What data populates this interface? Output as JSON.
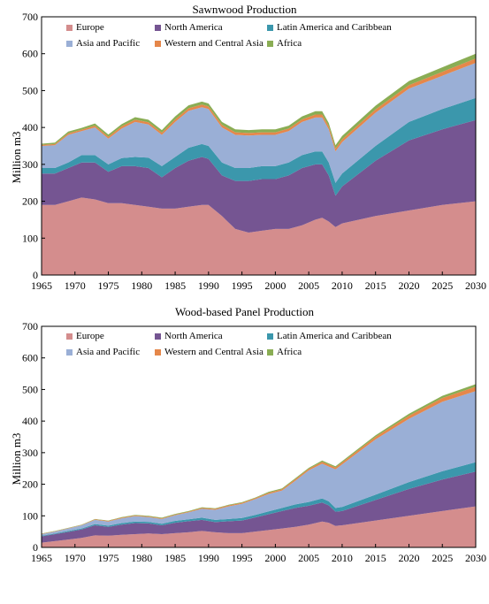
{
  "chart_data": [
    {
      "type": "area",
      "stacked": true,
      "title": "Sawnwood Production",
      "xlabel": "",
      "ylabel": "Million m3",
      "xlim": [
        1965,
        2030
      ],
      "ylim": [
        0,
        700
      ],
      "xticks": [
        1965,
        1970,
        1975,
        1980,
        1985,
        1990,
        1995,
        2000,
        2005,
        2010,
        2015,
        2020,
        2025,
        2030
      ],
      "yticks": [
        0,
        100,
        200,
        300,
        400,
        500,
        600,
        700
      ],
      "grid": false,
      "legend_position": "top-left",
      "x": [
        1965,
        1967,
        1969,
        1971,
        1973,
        1975,
        1977,
        1979,
        1981,
        1983,
        1985,
        1987,
        1989,
        1990,
        1992,
        1994,
        1996,
        1998,
        2000,
        2002,
        2004,
        2006,
        2007,
        2008,
        2009,
        2010,
        2015,
        2020,
        2025,
        2030
      ],
      "series": [
        {
          "name": "Europe",
          "color": "#d48d8d",
          "values": [
            190,
            190,
            200,
            210,
            205,
            195,
            195,
            190,
            185,
            180,
            180,
            185,
            190,
            190,
            160,
            125,
            115,
            120,
            125,
            125,
            135,
            150,
            155,
            145,
            130,
            140,
            160,
            175,
            190,
            200
          ]
        },
        {
          "name": "North America",
          "color": "#755592",
          "values": [
            85,
            85,
            90,
            95,
            100,
            85,
            100,
            105,
            105,
            85,
            110,
            125,
            130,
            125,
            110,
            130,
            140,
            140,
            135,
            145,
            155,
            150,
            145,
            125,
            85,
            100,
            150,
            190,
            205,
            220
          ]
        },
        {
          "name": "Latin America and Caribbean",
          "color": "#3b97ac",
          "values": [
            15,
            15,
            15,
            20,
            20,
            20,
            22,
            25,
            28,
            30,
            30,
            35,
            35,
            35,
            35,
            35,
            35,
            35,
            35,
            35,
            35,
            35,
            35,
            35,
            35,
            35,
            40,
            50,
            55,
            60
          ]
        },
        {
          "name": "Asia and Pacific",
          "color": "#9aafd6",
          "values": [
            60,
            62,
            75,
            65,
            75,
            70,
            80,
            95,
            90,
            85,
            95,
            100,
            100,
            100,
            95,
            90,
            88,
            85,
            85,
            85,
            90,
            92,
            92,
            90,
            85,
            85,
            90,
            90,
            90,
            95
          ]
        },
        {
          "name": "Western and Central Asia",
          "color": "#e5874a",
          "values": [
            3,
            3,
            4,
            4,
            5,
            5,
            6,
            6,
            6,
            6,
            7,
            7,
            7,
            7,
            7,
            7,
            7,
            7,
            7,
            7,
            7,
            8,
            8,
            8,
            8,
            8,
            9,
            10,
            11,
            12
          ]
        },
        {
          "name": "Africa",
          "color": "#8aad54",
          "values": [
            3,
            4,
            5,
            5,
            6,
            6,
            6,
            7,
            7,
            7,
            8,
            8,
            8,
            8,
            8,
            8,
            8,
            8,
            8,
            8,
            8,
            9,
            9,
            9,
            9,
            9,
            10,
            11,
            12,
            13
          ]
        }
      ]
    },
    {
      "type": "area",
      "stacked": true,
      "title": "Wood-based Panel Production",
      "xlabel": "",
      "ylabel": "Million m3",
      "xlim": [
        1965,
        2030
      ],
      "ylim": [
        0,
        700
      ],
      "xticks": [
        1965,
        1970,
        1975,
        1980,
        1985,
        1990,
        1995,
        2000,
        2005,
        2010,
        2015,
        2020,
        2025,
        2030
      ],
      "yticks": [
        0,
        100,
        200,
        300,
        400,
        500,
        600,
        700
      ],
      "grid": false,
      "legend_position": "top-left",
      "x": [
        1965,
        1967,
        1969,
        1971,
        1973,
        1975,
        1977,
        1979,
        1981,
        1983,
        1985,
        1987,
        1989,
        1991,
        1993,
        1995,
        1997,
        1999,
        2001,
        2003,
        2005,
        2007,
        2008,
        2009,
        2010,
        2015,
        2020,
        2025,
        2030
      ],
      "series": [
        {
          "name": "Europe",
          "color": "#d48d8d",
          "values": [
            15,
            20,
            25,
            30,
            38,
            37,
            40,
            42,
            44,
            42,
            45,
            48,
            52,
            48,
            45,
            45,
            50,
            55,
            60,
            65,
            72,
            82,
            78,
            68,
            70,
            85,
            100,
            115,
            130
          ]
        },
        {
          "name": "North America",
          "color": "#755592",
          "values": [
            20,
            22,
            24,
            27,
            32,
            28,
            32,
            35,
            32,
            28,
            33,
            35,
            35,
            32,
            38,
            40,
            45,
            50,
            55,
            60,
            60,
            60,
            55,
            45,
            45,
            65,
            85,
            100,
            110
          ]
        },
        {
          "name": "Latin America and Caribbean",
          "color": "#3b97ac",
          "values": [
            2,
            2,
            3,
            3,
            4,
            4,
            5,
            5,
            5,
            5,
            6,
            6,
            7,
            7,
            7,
            8,
            8,
            9,
            10,
            11,
            12,
            13,
            13,
            12,
            13,
            17,
            22,
            26,
            30
          ]
        },
        {
          "name": "Asia and Pacific",
          "color": "#9aafd6",
          "values": [
            5,
            6,
            8,
            10,
            13,
            13,
            15,
            17,
            15,
            15,
            18,
            22,
            28,
            32,
            40,
            45,
            50,
            55,
            55,
            75,
            100,
            110,
            110,
            122,
            135,
            175,
            200,
            220,
            225
          ]
        },
        {
          "name": "Western and Central Asia",
          "color": "#e5874a",
          "values": [
            1,
            1,
            1,
            1,
            2,
            2,
            2,
            2,
            2,
            2,
            2,
            2,
            3,
            3,
            3,
            3,
            3,
            4,
            4,
            5,
            5,
            6,
            6,
            6,
            6,
            8,
            10,
            12,
            14
          ]
        },
        {
          "name": "Africa",
          "color": "#8aad54",
          "values": [
            1,
            1,
            1,
            1,
            1,
            1,
            2,
            2,
            2,
            2,
            2,
            2,
            2,
            2,
            2,
            2,
            2,
            3,
            3,
            3,
            3,
            4,
            4,
            4,
            4,
            5,
            6,
            7,
            8
          ]
        }
      ]
    }
  ]
}
